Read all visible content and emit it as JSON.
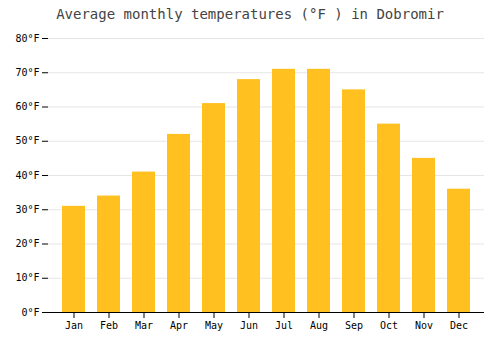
{
  "chart_data": {
    "type": "bar",
    "title": "Average monthly temperatures (°F ) in Dobromir",
    "categories": [
      "Jan",
      "Feb",
      "Mar",
      "Apr",
      "May",
      "Jun",
      "Jul",
      "Aug",
      "Sep",
      "Oct",
      "Nov",
      "Dec"
    ],
    "values": [
      31,
      34,
      41,
      52,
      61,
      68,
      71,
      71,
      65,
      55,
      45,
      36
    ],
    "color": "#FFC020",
    "ylim": [
      0,
      80
    ],
    "yticks": [
      {
        "value": 0,
        "label": "0°F"
      },
      {
        "value": 10,
        "label": "10°F"
      },
      {
        "value": 20,
        "label": "20°F"
      },
      {
        "value": 30,
        "label": "30°F"
      },
      {
        "value": 40,
        "label": "40°F"
      },
      {
        "value": 50,
        "label": "50°F"
      },
      {
        "value": 60,
        "label": "60°F"
      },
      {
        "value": 70,
        "label": "70°F"
      },
      {
        "value": 80,
        "label": "80°F"
      }
    ],
    "grid": true
  }
}
